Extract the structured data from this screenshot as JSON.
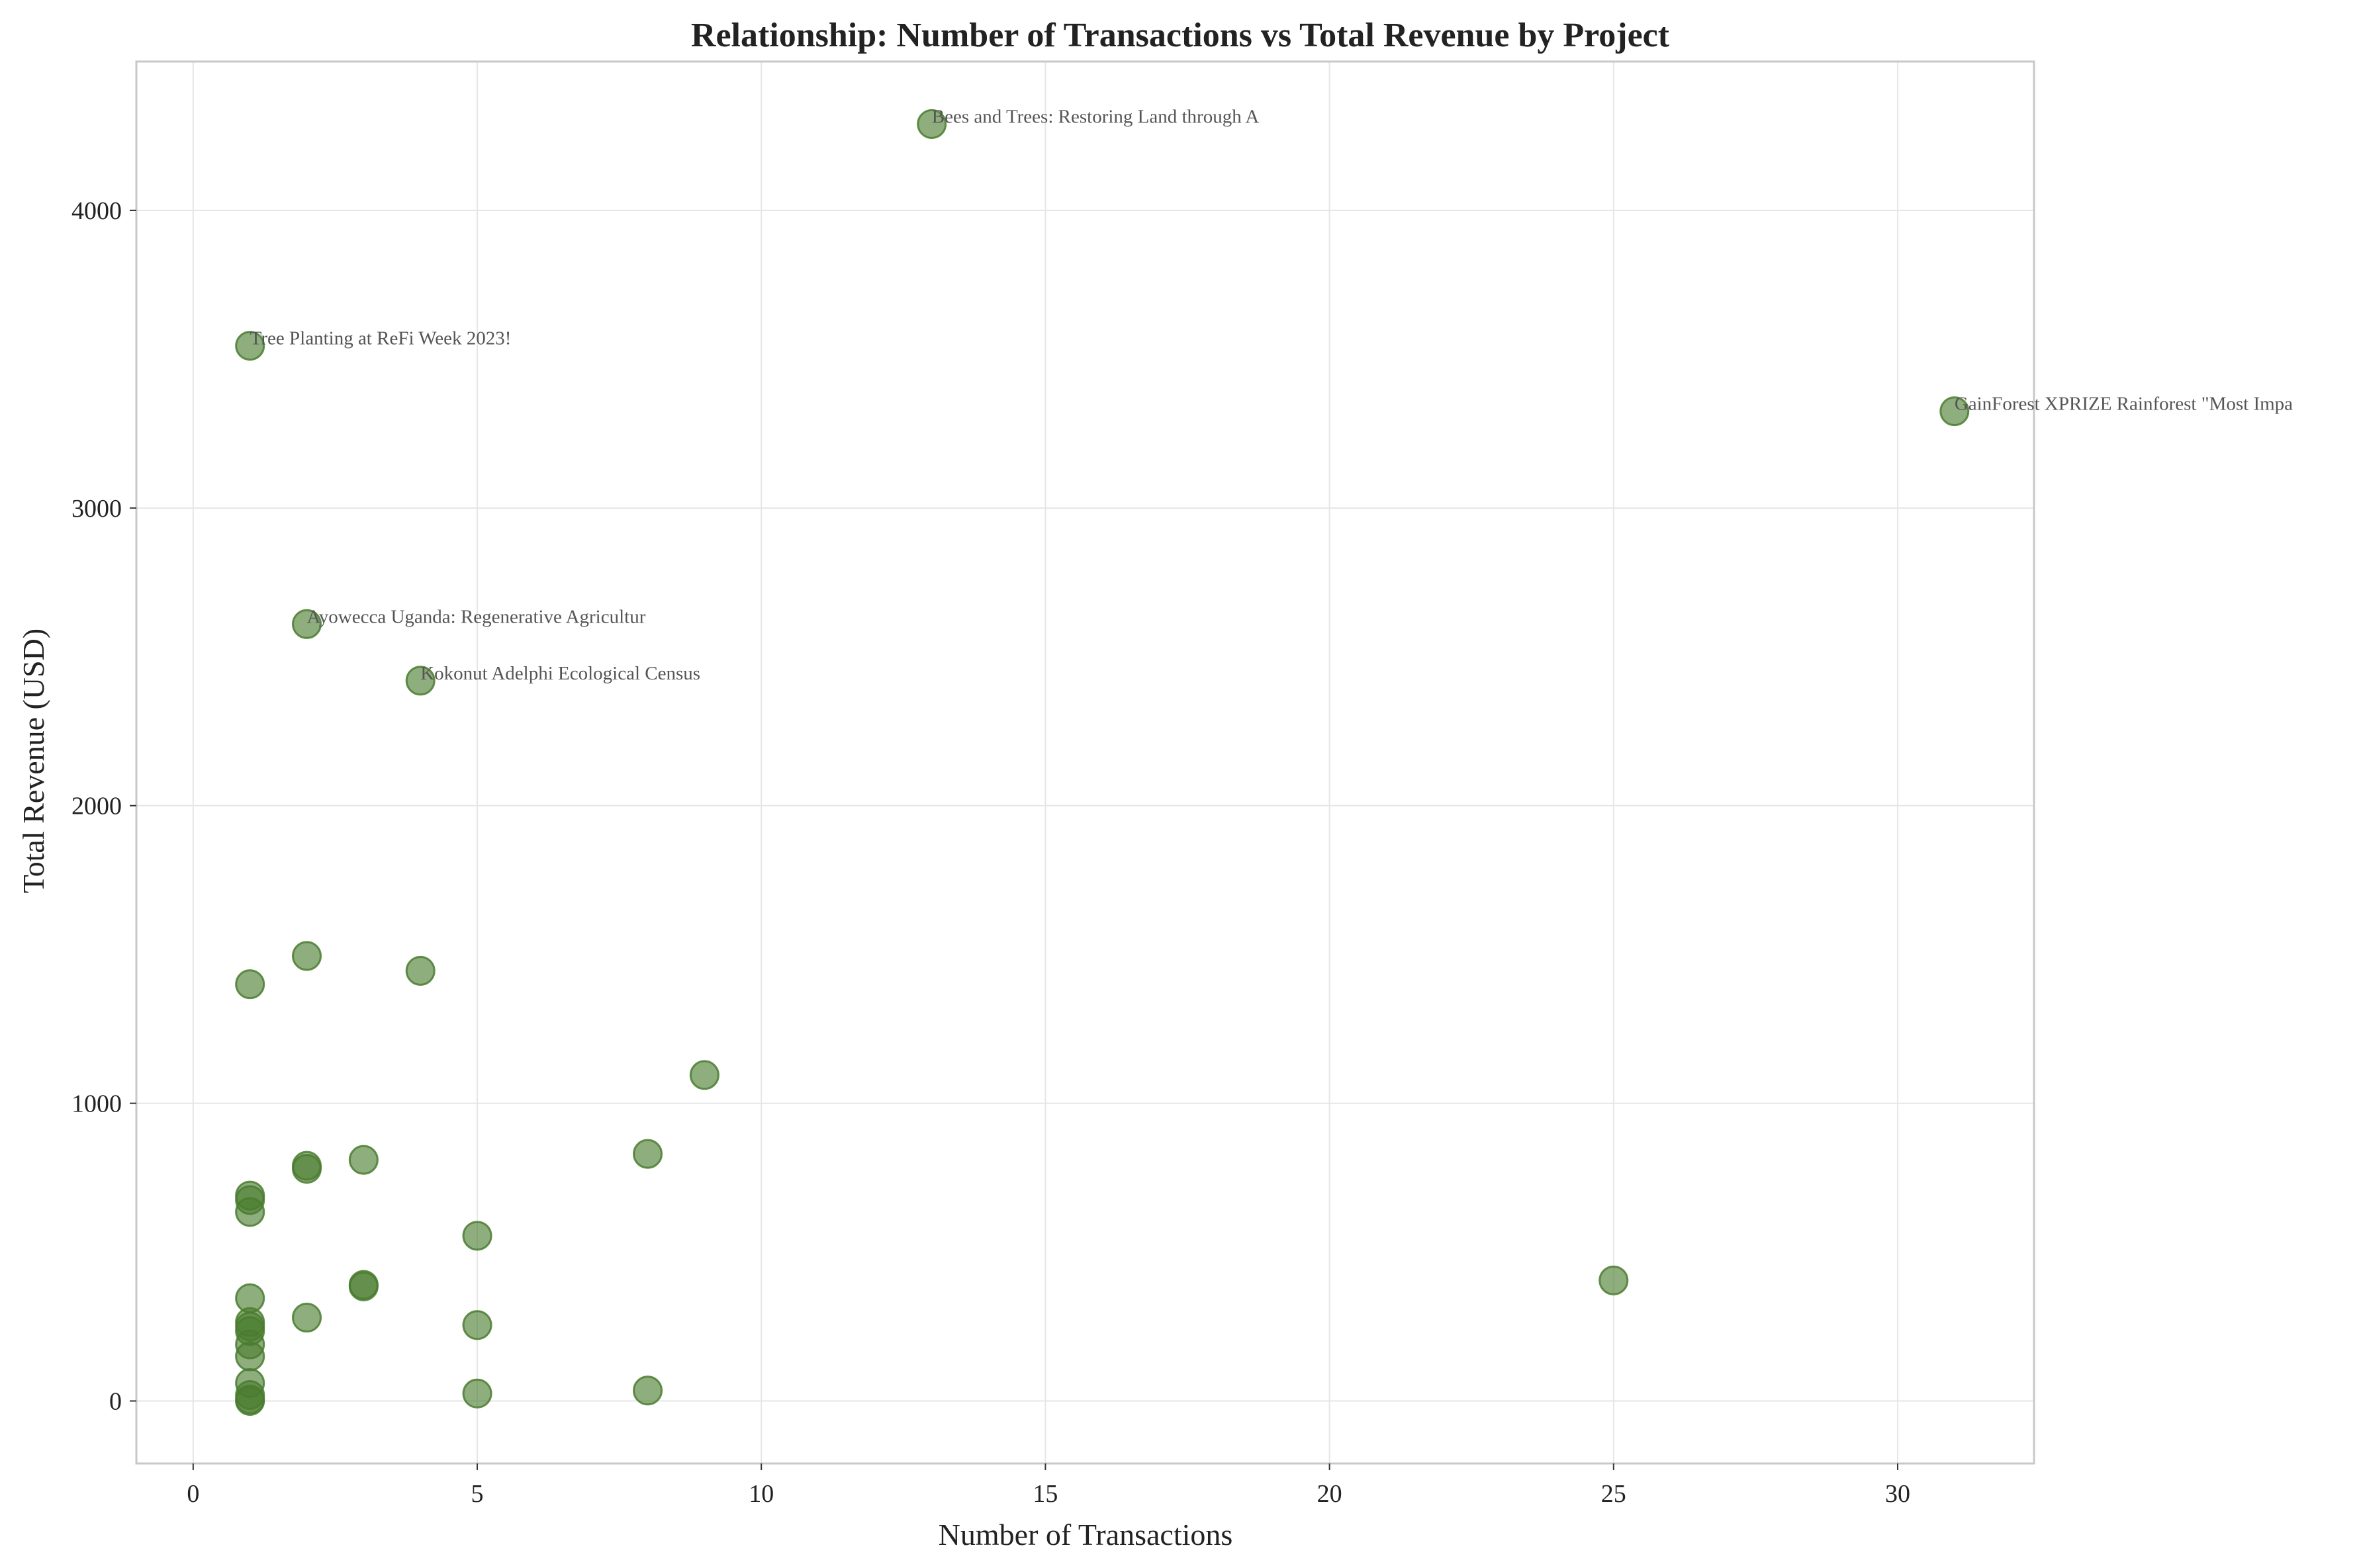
{
  "chart_data": {
    "type": "scatter",
    "title": "Relationship: Number of Transactions vs Total Revenue by Project",
    "xlabel": "Number of Transactions",
    "ylabel": "Total Revenue (USD)",
    "xlim": [
      -1,
      32.4
    ],
    "ylim": [
      -210,
      4500
    ],
    "xticks": [
      0,
      5,
      10,
      15,
      20,
      25,
      30
    ],
    "yticks": [
      0,
      1000,
      2000,
      3000,
      4000
    ],
    "xtick_labels": [
      "0",
      "5",
      "10",
      "15",
      "20",
      "25",
      "30"
    ],
    "ytick_labels": [
      "0",
      "1000",
      "2000",
      "3000",
      "4000"
    ],
    "grid": true,
    "point_color": "#4a7c2f",
    "points": [
      {
        "x": 13,
        "y": 4290
      },
      {
        "x": 1,
        "y": 3545
      },
      {
        "x": 31,
        "y": 3325
      },
      {
        "x": 2,
        "y": 2610
      },
      {
        "x": 4,
        "y": 2420
      },
      {
        "x": 2,
        "y": 1495
      },
      {
        "x": 4,
        "y": 1445
      },
      {
        "x": 1,
        "y": 1400
      },
      {
        "x": 9,
        "y": 1095
      },
      {
        "x": 8,
        "y": 830
      },
      {
        "x": 3,
        "y": 810
      },
      {
        "x": 2,
        "y": 790
      },
      {
        "x": 2,
        "y": 780
      },
      {
        "x": 1,
        "y": 690
      },
      {
        "x": 1,
        "y": 675
      },
      {
        "x": 1,
        "y": 635
      },
      {
        "x": 5,
        "y": 555
      },
      {
        "x": 25,
        "y": 405
      },
      {
        "x": 3,
        "y": 390
      },
      {
        "x": 3,
        "y": 385
      },
      {
        "x": 1,
        "y": 345
      },
      {
        "x": 2,
        "y": 280
      },
      {
        "x": 1,
        "y": 265
      },
      {
        "x": 1,
        "y": 250
      },
      {
        "x": 1,
        "y": 235
      },
      {
        "x": 5,
        "y": 255
      },
      {
        "x": 1,
        "y": 190
      },
      {
        "x": 1,
        "y": 150
      },
      {
        "x": 1,
        "y": 60
      },
      {
        "x": 8,
        "y": 35
      },
      {
        "x": 5,
        "y": 25
      },
      {
        "x": 1,
        "y": 20
      },
      {
        "x": 1,
        "y": 5
      },
      {
        "x": 1,
        "y": 0
      }
    ],
    "annotations": [
      {
        "text": "Bees and Trees: Restoring Land through A",
        "x": 13,
        "y": 4290
      },
      {
        "text": "Tree Planting at ReFi Week 2023!",
        "x": 1,
        "y": 3545
      },
      {
        "text": "GainForest  XPRIZE Rainforest \"Most Impa",
        "x": 31,
        "y": 3325
      },
      {
        "text": "Ayowecca Uganda: Regenerative Agricultur",
        "x": 2,
        "y": 2610
      },
      {
        "text": "Kokonut Adelphi Ecological Census",
        "x": 4,
        "y": 2420
      }
    ]
  }
}
